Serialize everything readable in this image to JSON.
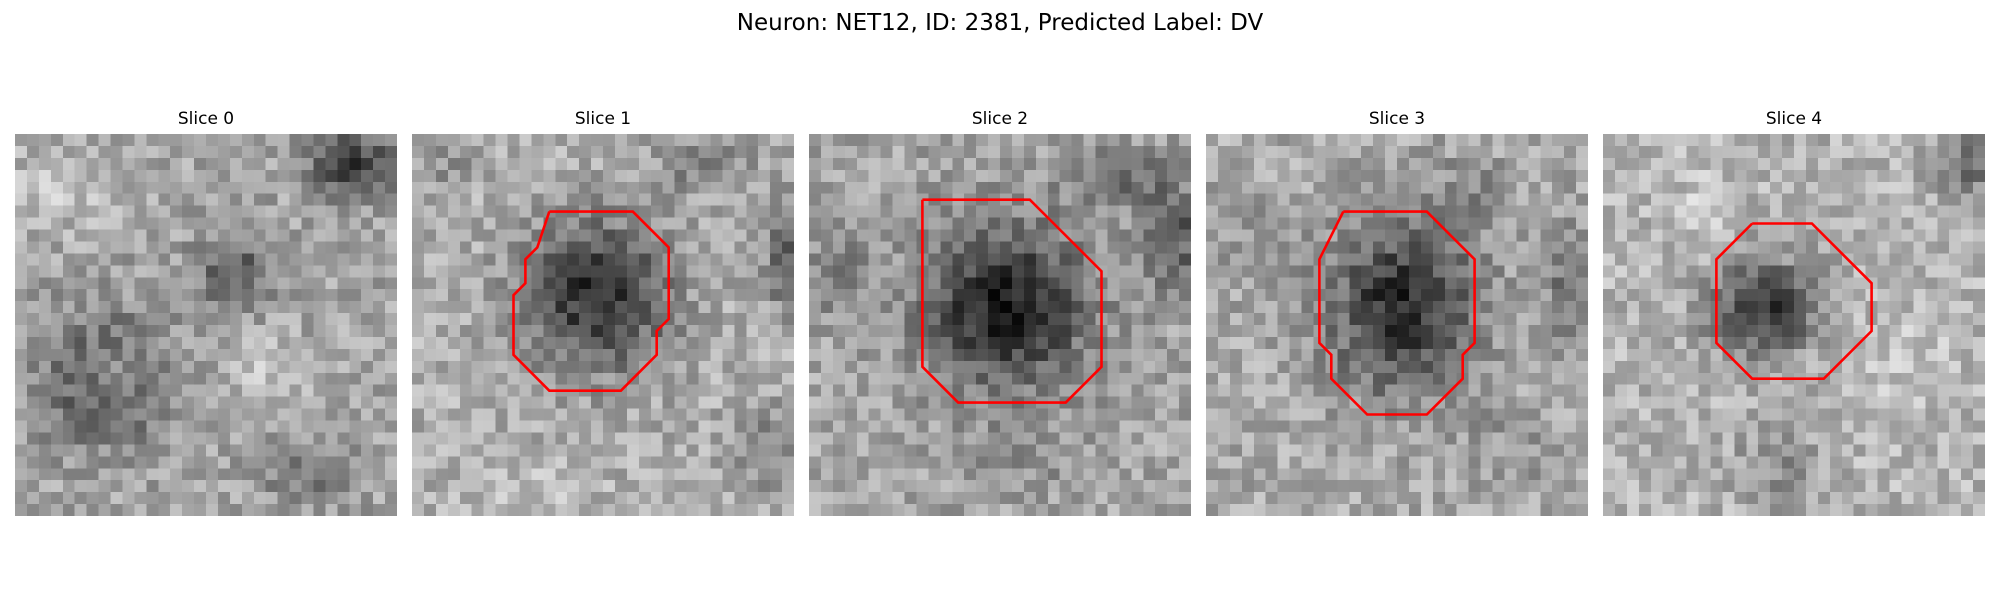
{
  "figure": {
    "suptitle": "Neuron: NET12, ID: 2381, Predicted Label: DV"
  },
  "slices": [
    {
      "title": "Slice 0",
      "has_outline": false
    },
    {
      "title": "Slice 1",
      "has_outline": true
    },
    {
      "title": "Slice 2",
      "has_outline": true
    },
    {
      "title": "Slice 3",
      "has_outline": true
    },
    {
      "title": "Slice 4",
      "has_outline": true
    }
  ],
  "colors": {
    "outline": "#ff0000",
    "background": "#ffffff"
  },
  "colormap": "gray"
}
